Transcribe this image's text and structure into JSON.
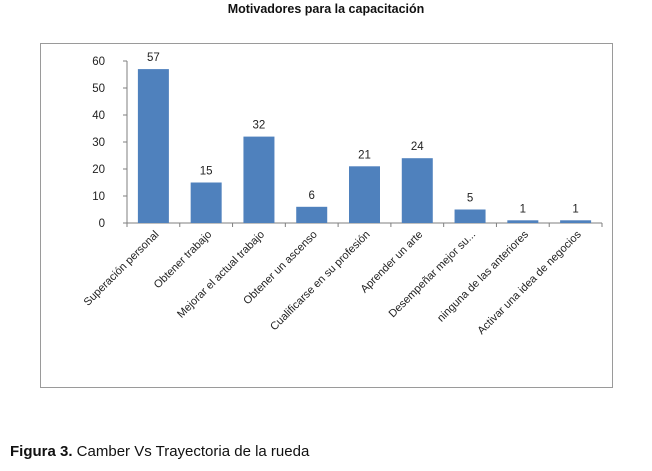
{
  "chart_data": {
    "type": "bar",
    "title": "Motivadores para la capacitación",
    "xlabel": "",
    "ylabel": "",
    "categories": [
      "Superación personal",
      "Obtener trabajo",
      "Mejorar el actual trabajo",
      "Obtener un ascenso",
      "Cualificarse en su profesión",
      "Aprender un arte",
      "Desempeñar mejor su...",
      "ninguna de las anteriores",
      "Activar una idea de negocios"
    ],
    "values": [
      57,
      15,
      32,
      6,
      21,
      24,
      5,
      1,
      1
    ],
    "ylim": [
      0,
      60
    ],
    "yticks": [
      0,
      10,
      20,
      30,
      40,
      50,
      60
    ],
    "grid": false,
    "legend": "none",
    "bar_color": "#4f81bd",
    "axis_color": "#7f7f7f"
  },
  "caption": {
    "label": "Figura 3.",
    "text": " Camber Vs Trayectoria de la rueda"
  }
}
